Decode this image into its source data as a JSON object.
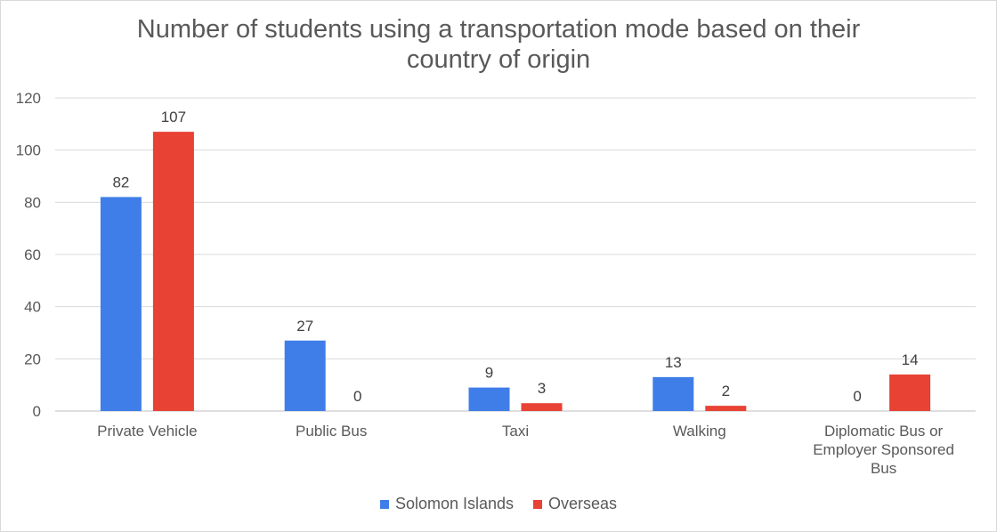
{
  "chart_data": {
    "type": "bar",
    "title": "Number of students using a transportation mode based on their country of origin",
    "title_lines": [
      "Number of students using a transportation mode based on their",
      "country of origin"
    ],
    "categories": [
      "Private Vehicle",
      "Public Bus",
      "Taxi",
      "Walking",
      "Diplomatic Bus or Employer Sponsored Bus"
    ],
    "category_lines": [
      [
        "Private Vehicle"
      ],
      [
        "Public Bus"
      ],
      [
        "Taxi"
      ],
      [
        "Walking"
      ],
      [
        "Diplomatic Bus or",
        "Employer Sponsored",
        "Bus"
      ]
    ],
    "series": [
      {
        "name": "Solomon Islands",
        "values": [
          82,
          27,
          9,
          13,
          0
        ],
        "color": "#3f7ee8"
      },
      {
        "name": "Overseas",
        "values": [
          107,
          0,
          3,
          2,
          14
        ],
        "color": "#e84235"
      }
    ],
    "ylim": [
      0,
      120
    ],
    "yticks": [
      0,
      20,
      40,
      60,
      80,
      100,
      120
    ],
    "xlabel": "",
    "ylabel": "",
    "grid": true,
    "legend_position": "bottom",
    "data_labels": true
  }
}
